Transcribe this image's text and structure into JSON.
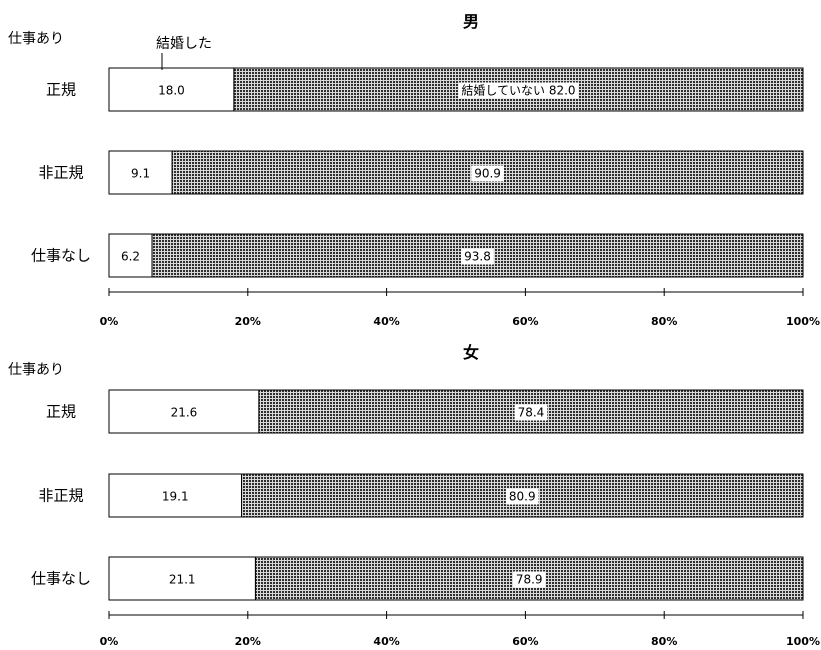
{
  "chart_data": [
    {
      "type": "bar",
      "orientation": "horizontal",
      "stacked": true,
      "title": "男",
      "group_label": "仕事あり",
      "categories": [
        "正規",
        "非正規",
        "仕事なし"
      ],
      "series": [
        {
          "name": "結婚した",
          "values": [
            18.0,
            9.1,
            6.2
          ]
        },
        {
          "name": "結婚していない",
          "values": [
            82.0,
            90.9,
            93.8
          ]
        }
      ],
      "value_labels": {
        "married": [
          "18.0",
          "9.1",
          "6.2"
        ],
        "unmarried": [
          "結婚していない 82.0",
          "90.9",
          "93.8"
        ]
      },
      "xlim": [
        0,
        100
      ],
      "xticks": [
        "0%",
        "20%",
        "40%",
        "60%",
        "80%",
        "100%"
      ],
      "annotation": "結婚した"
    },
    {
      "type": "bar",
      "orientation": "horizontal",
      "stacked": true,
      "title": "女",
      "group_label": "仕事あり",
      "categories": [
        "正規",
        "非正規",
        "仕事なし"
      ],
      "series": [
        {
          "name": "結婚した",
          "values": [
            21.6,
            19.1,
            21.1
          ]
        },
        {
          "name": "結婚していない",
          "values": [
            78.4,
            80.9,
            78.9
          ]
        }
      ],
      "value_labels": {
        "married": [
          "21.6",
          "19.1",
          "21.1"
        ],
        "unmarried": [
          "78.4",
          "80.9",
          "78.9"
        ]
      },
      "xlim": [
        0,
        100
      ],
      "xticks": [
        "0%",
        "20%",
        "40%",
        "60%",
        "80%",
        "100%"
      ]
    }
  ]
}
